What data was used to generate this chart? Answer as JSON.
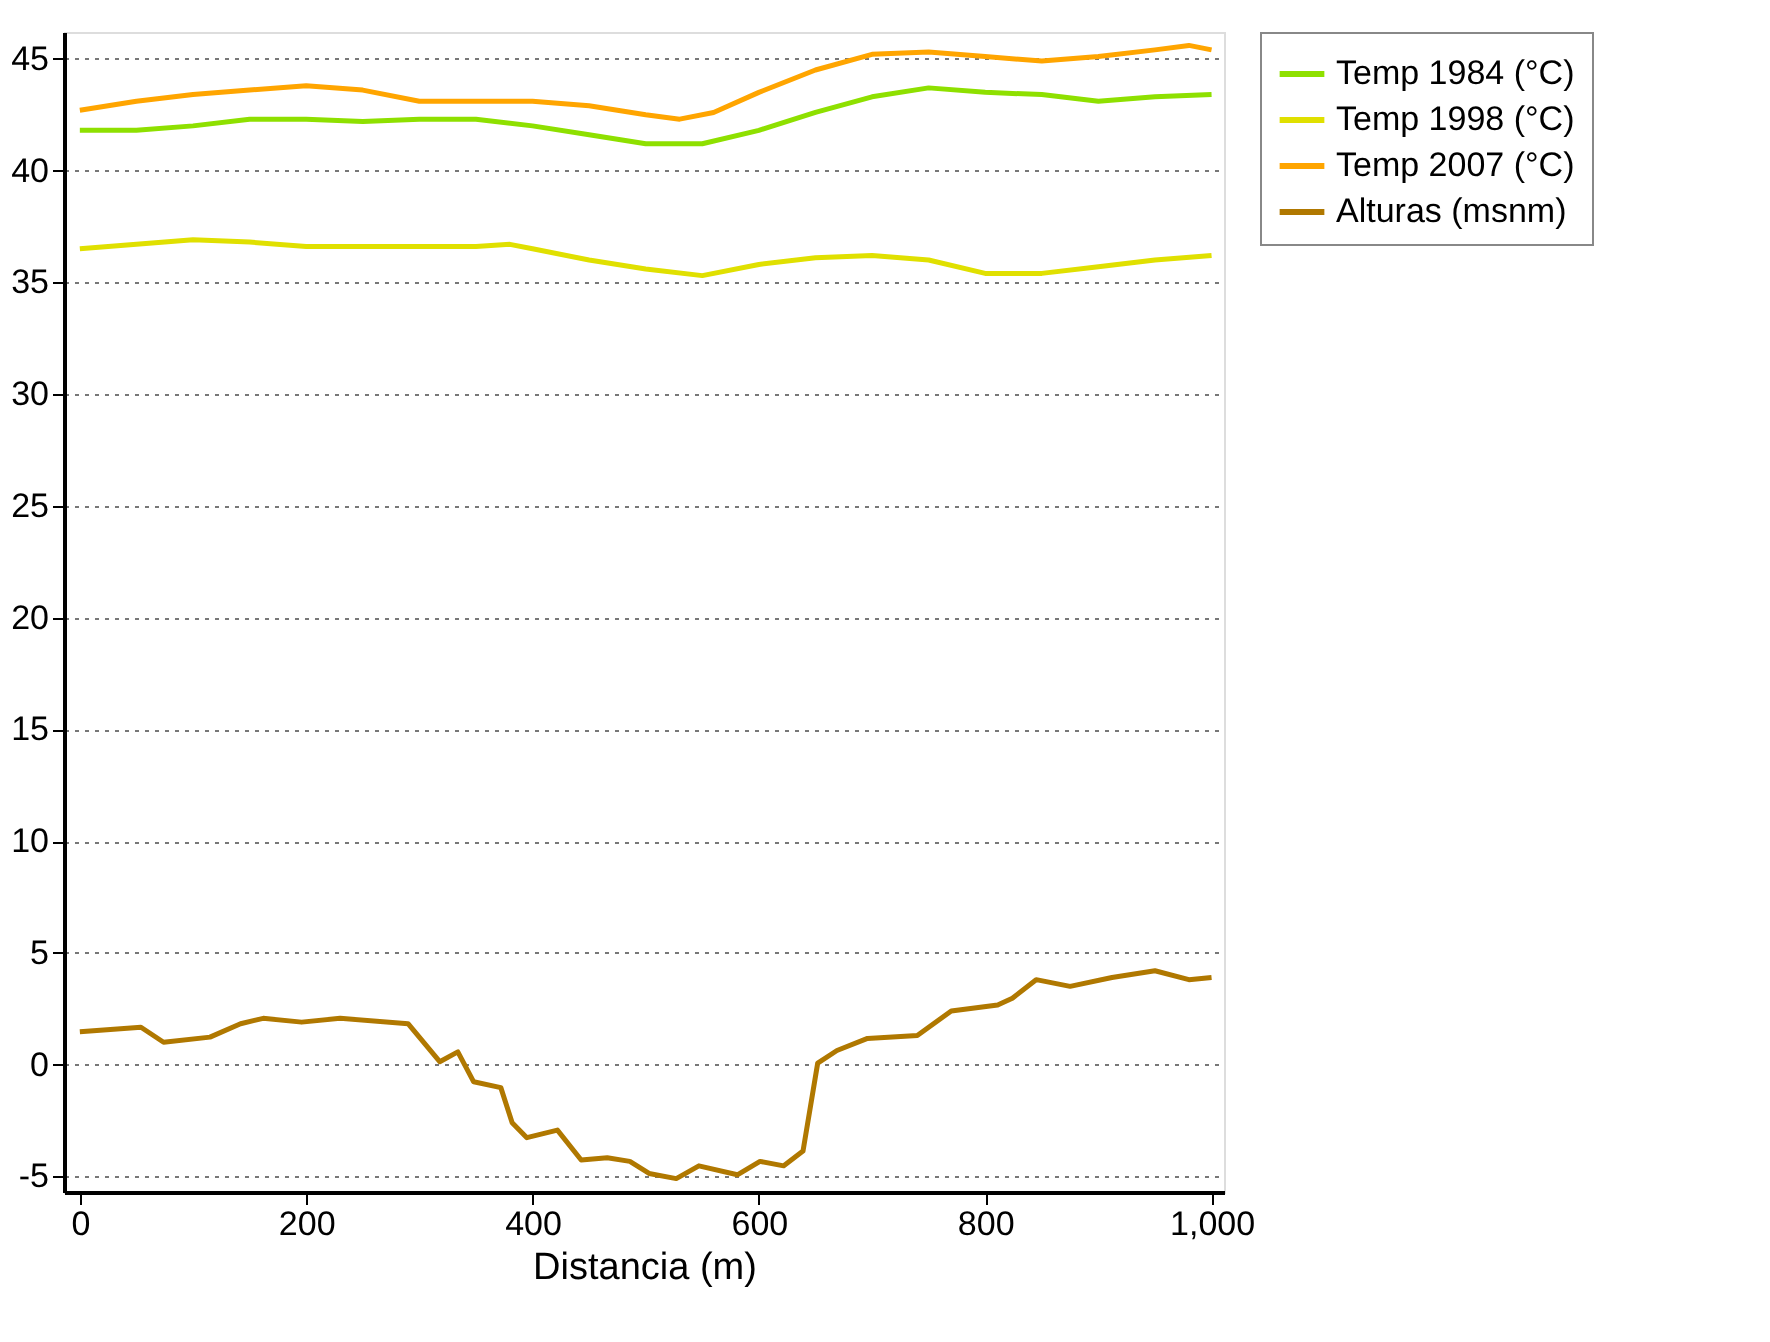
{
  "chart_data": {
    "type": "line",
    "xlabel": "Distancia (m)",
    "xlim": [
      -14,
      1011
    ],
    "ylim": [
      -5.7,
      46.2
    ],
    "xticks": [
      0,
      200,
      400,
      600,
      800,
      {
        "value": 1000,
        "label": "1,000"
      }
    ],
    "yticks": [
      -5,
      0,
      5,
      10,
      15,
      20,
      25,
      30,
      35,
      40,
      45
    ],
    "grid": "y",
    "legend": "top right",
    "marker": "none",
    "line_style": "solid",
    "series": [
      {
        "name": "Temp 1984 (°C)",
        "color": "#8ee000",
        "x": [
          0,
          50,
          100,
          150,
          200,
          250,
          300,
          350,
          400,
          450,
          500,
          550,
          600,
          650,
          700,
          750,
          800,
          850,
          900,
          950,
          1000
        ],
        "values": [
          41.8,
          41.8,
          42.0,
          42.3,
          42.3,
          42.2,
          42.3,
          42.3,
          42.0,
          41.6,
          41.2,
          41.2,
          41.8,
          42.6,
          43.3,
          43.7,
          43.5,
          43.4,
          43.1,
          43.3,
          43.4
        ]
      },
      {
        "name": "Temp 1998 (°C)",
        "color": "#e0e000",
        "x": [
          0,
          50,
          100,
          150,
          200,
          300,
          350,
          380,
          400,
          450,
          500,
          550,
          600,
          650,
          700,
          750,
          800,
          850,
          900,
          950,
          1000
        ],
        "values": [
          36.5,
          36.7,
          36.9,
          36.8,
          36.6,
          36.6,
          36.6,
          36.7,
          36.5,
          36.0,
          35.6,
          35.3,
          35.8,
          36.1,
          36.2,
          36.0,
          35.4,
          35.4,
          35.7,
          36.0,
          36.2
        ]
      },
      {
        "name": "Temp 2007 (°C)",
        "color": "#ffa500",
        "x": [
          0,
          50,
          100,
          150,
          200,
          250,
          300,
          350,
          400,
          450,
          500,
          530,
          560,
          600,
          650,
          700,
          750,
          800,
          850,
          900,
          950,
          980,
          1000
        ],
        "values": [
          42.7,
          43.1,
          43.4,
          43.6,
          43.8,
          43.6,
          43.1,
          43.1,
          43.1,
          42.9,
          42.5,
          42.3,
          42.6,
          43.5,
          44.5,
          45.2,
          45.3,
          45.1,
          44.9,
          45.1,
          45.4,
          45.6,
          45.4
        ]
      },
      {
        "name": "Alturas (msnm)",
        "color": "#b07800",
        "x": [
          0,
          54,
          74,
          115,
          142,
          162,
          196,
          230,
          290,
          318,
          334,
          348,
          372,
          382,
          395,
          422,
          443,
          466,
          486,
          503,
          527,
          547,
          581,
          601,
          622,
          639,
          652,
          669,
          696,
          740,
          770,
          811,
          824,
          845,
          875,
          912,
          950,
          980,
          1000
        ],
        "values": [
          1.47,
          1.67,
          1.0,
          1.23,
          1.83,
          2.07,
          1.9,
          2.07,
          1.83,
          0.13,
          0.57,
          -0.77,
          -1.03,
          -2.6,
          -3.27,
          -2.93,
          -4.27,
          -4.17,
          -4.33,
          -4.87,
          -5.1,
          -4.53,
          -4.93,
          -4.33,
          -4.53,
          -3.87,
          0.07,
          0.63,
          1.17,
          1.3,
          2.4,
          2.67,
          2.97,
          3.8,
          3.5,
          3.9,
          4.2,
          3.8,
          3.9
        ]
      }
    ]
  }
}
